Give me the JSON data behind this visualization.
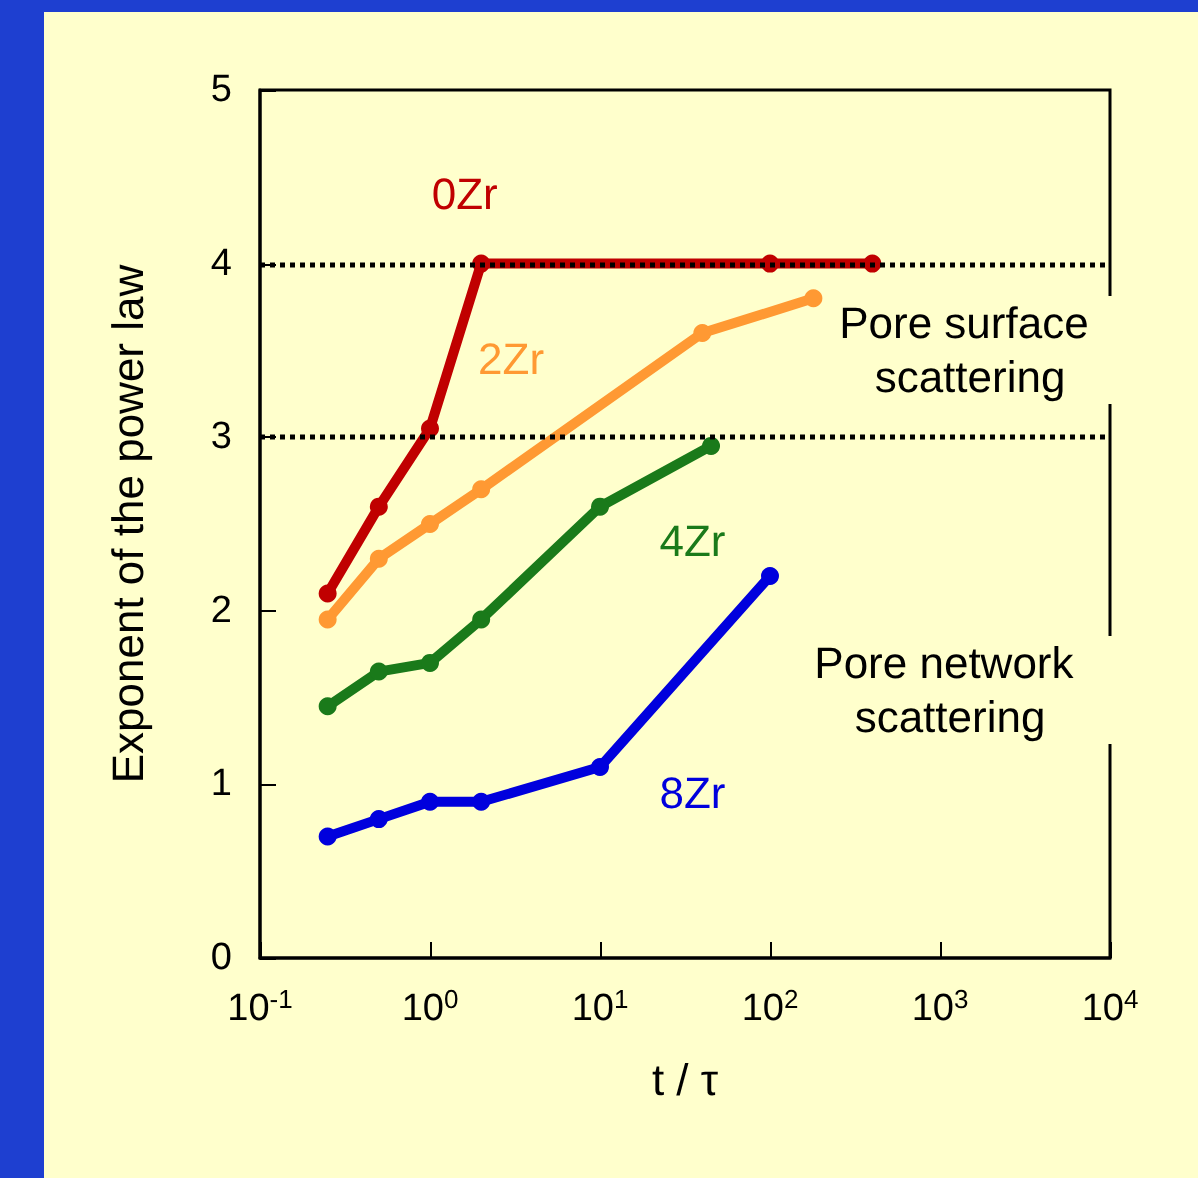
{
  "chart_data": {
    "type": "line",
    "xlabel": "t / τ",
    "ylabel": "Exponent of the power law",
    "log": "x",
    "xlim": [
      0.1,
      10000
    ],
    "ylim": [
      0,
      5
    ],
    "xticks": [
      {
        "value": 0.1,
        "label": "10$^{-1}$"
      },
      {
        "value": 1,
        "label": "10$^{0}$"
      },
      {
        "value": 10,
        "label": "10$^{1}$"
      },
      {
        "value": 100,
        "label": "10$^{2}$"
      },
      {
        "value": 1000,
        "label": "10$^{3}$"
      },
      {
        "value": 10000,
        "label": "10$^{4}$"
      }
    ],
    "yticks": [
      0,
      1,
      2,
      3,
      4,
      5
    ],
    "grid": false,
    "legend": false,
    "marker": "circle",
    "line_style": "solid",
    "series": [
      {
        "name": "0Zr",
        "color": "#c00000",
        "x": [
          0.25,
          0.5,
          1,
          2,
          100,
          400
        ],
        "values": [
          2.1,
          2.6,
          3.05,
          4.0,
          4.0,
          4.0
        ]
      },
      {
        "name": "2Zr",
        "color": "#ff9933",
        "x": [
          0.25,
          0.5,
          1,
          2,
          40,
          180
        ],
        "values": [
          1.95,
          2.3,
          2.5,
          2.7,
          3.6,
          3.8
        ]
      },
      {
        "name": "4Zr",
        "color": "#1a7a1a",
        "x": [
          0.25,
          0.5,
          1,
          2,
          10,
          45
        ],
        "values": [
          1.45,
          1.65,
          1.7,
          1.95,
          2.6,
          2.95
        ]
      },
      {
        "name": "8Zr",
        "color": "#0000dd",
        "x": [
          0.25,
          0.5,
          1,
          2,
          10,
          100
        ],
        "values": [
          0.7,
          0.8,
          0.9,
          0.9,
          1.1,
          2.2
        ]
      }
    ],
    "ref_lines": [
      {
        "axis": "y",
        "value": 4,
        "color": "#000000",
        "line_style": "dotted"
      },
      {
        "axis": "y",
        "value": 3,
        "color": "#000000",
        "line_style": "dotted"
      }
    ],
    "annotations": [
      "Pore surface scattering",
      "Pore network scattering"
    ]
  }
}
